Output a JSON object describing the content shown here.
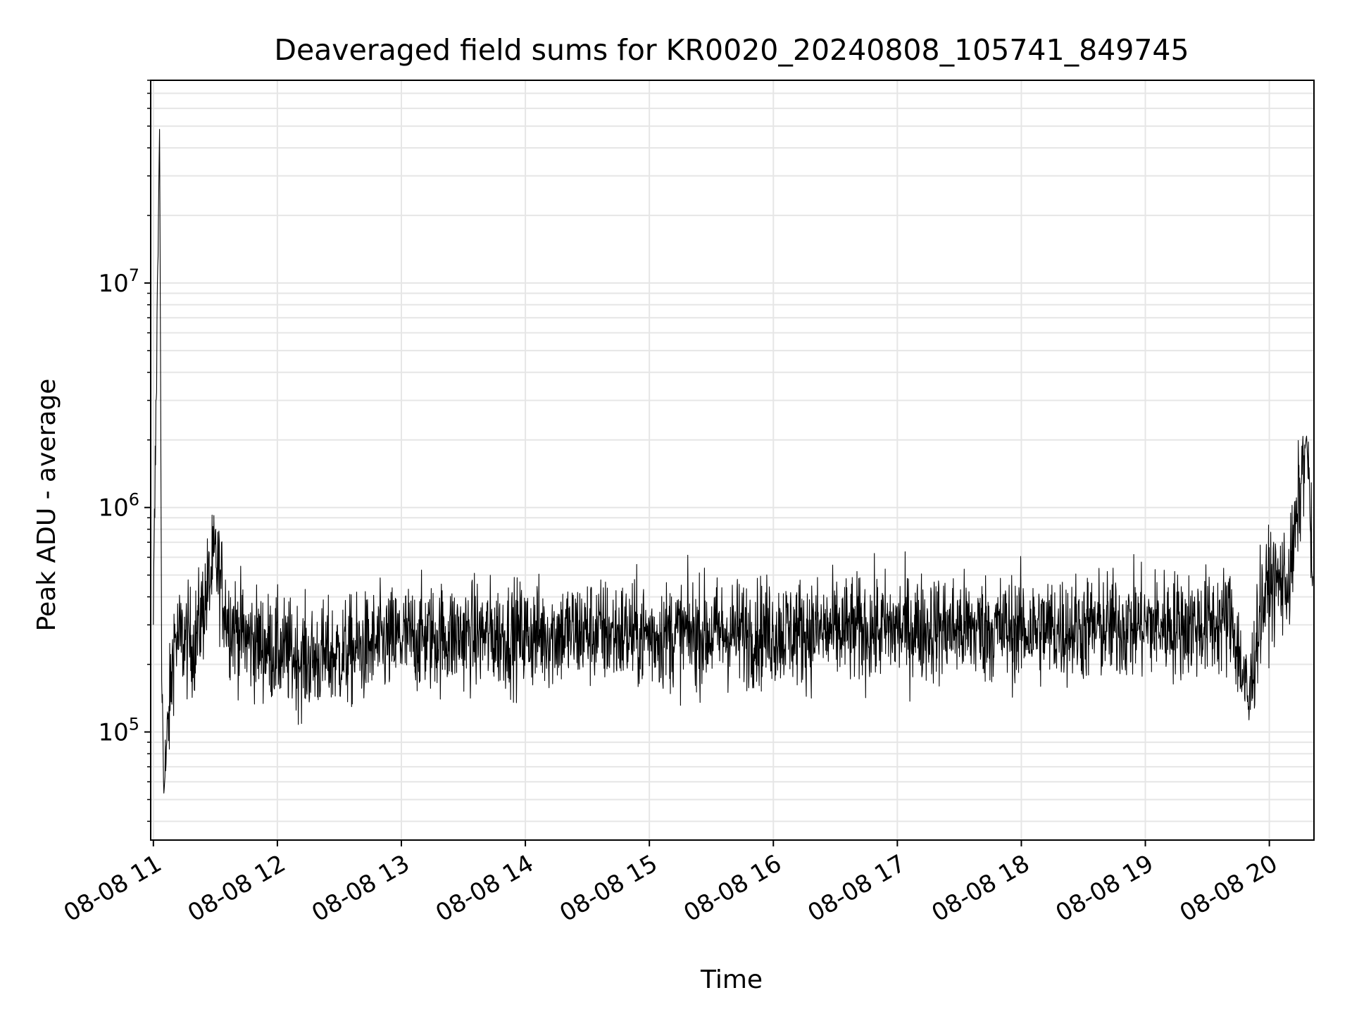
{
  "chart_data": {
    "type": "line",
    "title": "Deaveraged field sums for KR0020_20240808_105741_849745",
    "xlabel": "Time",
    "ylabel": "Peak ADU - average",
    "yscale": "log",
    "ylim": [
      33000,
      80000000
    ],
    "xlim": [
      "2024-08-08 10:58:42",
      "2024-08-08 20:21:36"
    ],
    "grid": true,
    "legend": "none",
    "line_color": "#000000",
    "x_ticks": [
      {
        "value": "2024-08-08 11:00",
        "label": "08-08 11"
      },
      {
        "value": "2024-08-08 12:00",
        "label": "08-08 12"
      },
      {
        "value": "2024-08-08 13:00",
        "label": "08-08 13"
      },
      {
        "value": "2024-08-08 14:00",
        "label": "08-08 14"
      },
      {
        "value": "2024-08-08 15:00",
        "label": "08-08 15"
      },
      {
        "value": "2024-08-08 16:00",
        "label": "08-08 16"
      },
      {
        "value": "2024-08-08 17:00",
        "label": "08-08 17"
      },
      {
        "value": "2024-08-08 18:00",
        "label": "08-08 18"
      },
      {
        "value": "2024-08-08 19:00",
        "label": "08-08 19"
      },
      {
        "value": "2024-08-08 20:00",
        "label": "08-08 20"
      }
    ],
    "y_ticks": [
      {
        "value": 100000,
        "base": "10",
        "exp": "5"
      },
      {
        "value": 1000000,
        "base": "10",
        "exp": "6"
      },
      {
        "value": 10000000,
        "base": "10",
        "exp": "7"
      }
    ],
    "series": [
      {
        "x": [
          "2024-08-08 11:00",
          "2024-08-08 11:03",
          "2024-08-08 11:04",
          "2024-08-08 11:05",
          "2024-08-08 11:10",
          "2024-08-08 11:20",
          "2024-08-08 11:30",
          "2024-08-08 11:36",
          "2024-08-08 11:45",
          "2024-08-08 12:00",
          "2024-08-08 12:15",
          "2024-08-08 12:30",
          "2024-08-08 13:00",
          "2024-08-08 13:30",
          "2024-08-08 14:00",
          "2024-08-08 14:30",
          "2024-08-08 15:00",
          "2024-08-08 15:30",
          "2024-08-08 16:00",
          "2024-08-08 16:30",
          "2024-08-08 17:00",
          "2024-08-08 17:30",
          "2024-08-08 18:00",
          "2024-08-08 18:30",
          "2024-08-08 19:00",
          "2024-08-08 19:30",
          "2024-08-08 19:42",
          "2024-08-08 19:50",
          "2024-08-08 19:55",
          "2024-08-08 20:00",
          "2024-08-08 20:10",
          "2024-08-08 20:18",
          "2024-08-08 20:21"
        ],
        "y": [
          300000,
          50000000,
          280000,
          52000,
          260000,
          250000,
          600000,
          320000,
          260000,
          230000,
          210000,
          220000,
          260000,
          270000,
          270000,
          280000,
          270000,
          275000,
          280000,
          280000,
          290000,
          290000,
          285000,
          290000,
          300000,
          300000,
          320000,
          130000,
          330000,
          450000,
          480000,
          2100000,
          500000
        ]
      }
    ]
  }
}
